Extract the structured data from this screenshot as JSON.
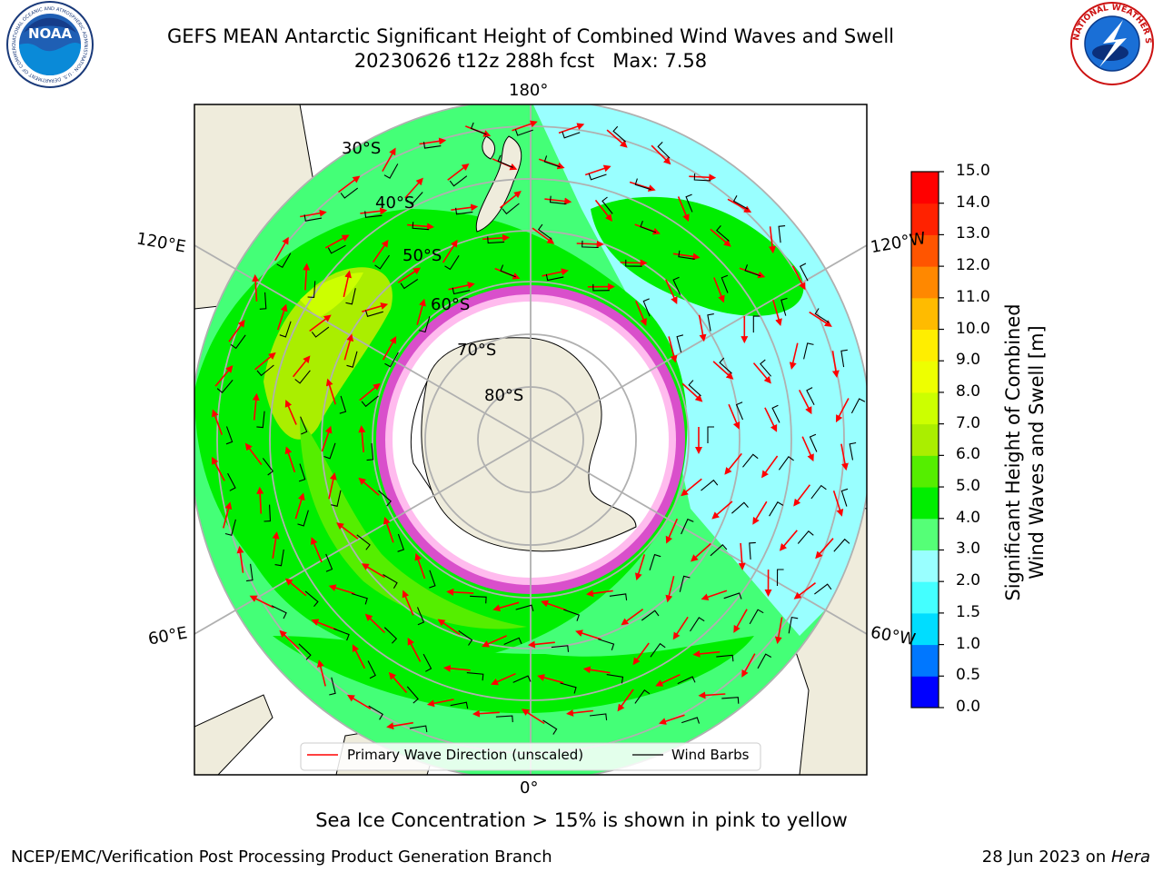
{
  "header": {
    "title_line1": "GEFS MEAN Antarctic Significant Height of Combined Wind Waves and Swell",
    "title_line2": "20230626 t12z 288h fcst   Max: 7.58"
  },
  "logos": {
    "noaa_text": "NOAA",
    "noaa_ring_text": "NATIONAL OCEANIC AND ATMOSPHERIC ADMINISTRATION · U.S. DEPARTMENT OF COMMERCE",
    "nws_ring_text": "NATIONAL WEATHER SERVICE"
  },
  "map": {
    "longitude_labels": {
      "top": "180°",
      "bottom": "0°",
      "upper_left": "120°E",
      "upper_right": "120°W",
      "lower_left": "60°E",
      "lower_right": "60°W"
    },
    "latitude_labels": [
      "30°S",
      "40°S",
      "50°S",
      "60°S",
      "70°S",
      "80°S"
    ],
    "legend": {
      "wave_direction": "Primary Wave Direction (unscaled)",
      "wind_barbs": "Wind Barbs"
    },
    "colors": {
      "land": "#efecdc",
      "ice": "#ffffff",
      "wave_arrow": "#ff0000",
      "barb": "#000000",
      "ice_edge": "#ff33ee"
    }
  },
  "colorbar": {
    "title_line1": "Significant Height of Combined",
    "title_line2": "Wind Waves and Swell [m]",
    "ticks": [
      "0.0",
      "0.5",
      "1.0",
      "1.5",
      "2.0",
      "3.0",
      "4.0",
      "5.0",
      "6.0",
      "7.0",
      "8.0",
      "9.0",
      "10.0",
      "11.0",
      "12.0",
      "13.0",
      "14.0",
      "15.0"
    ],
    "colors": [
      "#0000ff",
      "#0077ff",
      "#00ddff",
      "#44ffff",
      "#99ffff",
      "#55ff77",
      "#00ee00",
      "#55ee00",
      "#aaee00",
      "#ccff00",
      "#eeff00",
      "#ffee00",
      "#ffbb00",
      "#ff8800",
      "#ff5500",
      "#ff2200",
      "#ff0000"
    ]
  },
  "notes": {
    "sea_ice": "Sea Ice Concentration > 15% is shown in pink to yellow"
  },
  "footer": {
    "left": "NCEP/EMC/Verification Post Processing Product Generation Branch",
    "date": "28 Jun 2023 on ",
    "machine": "Hera"
  }
}
